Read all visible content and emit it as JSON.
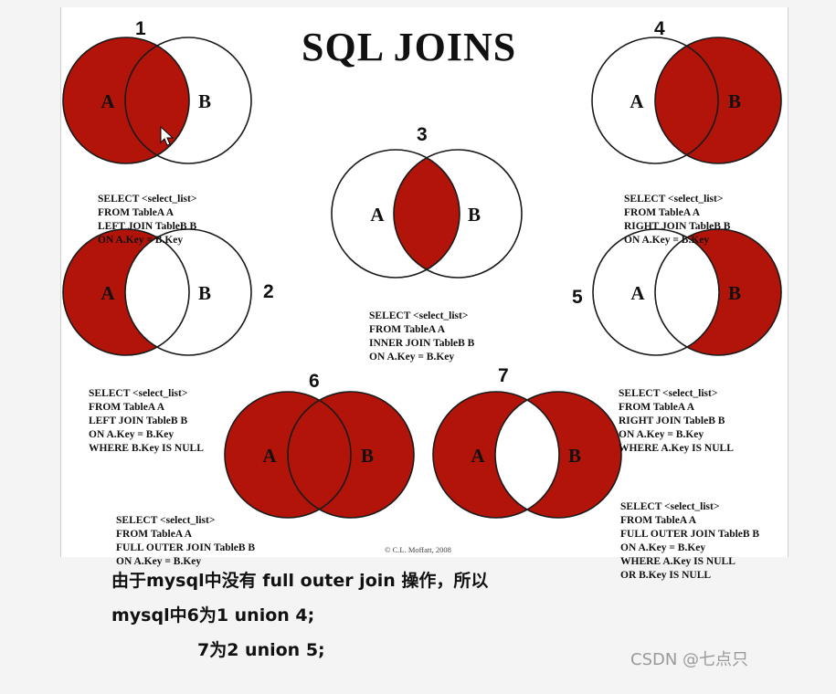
{
  "title": "SQL JOINS",
  "colors": {
    "fill": "#b3140a",
    "stroke": "#1a1a1a"
  },
  "joins": [
    {
      "number": "1",
      "label_a": "A",
      "label_b": "B",
      "sql": [
        "SELECT <select_list>",
        "FROM TableA A",
        "LEFT JOIN TableB B",
        "ON A.Key = B.Key"
      ]
    },
    {
      "number": "2",
      "label_a": "A",
      "label_b": "B",
      "sql": [
        "SELECT <select_list>",
        "FROM TableA A",
        "LEFT JOIN TableB B",
        "ON A.Key = B.Key",
        "WHERE B.Key IS NULL"
      ]
    },
    {
      "number": "3",
      "label_a": "A",
      "label_b": "B",
      "sql": [
        "SELECT <select_list>",
        "FROM TableA A",
        "INNER JOIN TableB B",
        "ON A.Key = B.Key"
      ]
    },
    {
      "number": "4",
      "label_a": "A",
      "label_b": "B",
      "sql": [
        "SELECT <select_list>",
        "FROM TableA A",
        "RIGHT JOIN TableB B",
        "ON A.Key = B.Key"
      ]
    },
    {
      "number": "5",
      "label_a": "A",
      "label_b": "B",
      "sql": [
        "SELECT <select_list>",
        "FROM TableA A",
        "RIGHT JOIN TableB B",
        "ON A.Key = B.Key",
        "WHERE A.Key IS NULL"
      ]
    },
    {
      "number": "6",
      "label_a": "A",
      "label_b": "B",
      "sql": [
        "SELECT <select_list>",
        "FROM TableA A",
        "FULL OUTER JOIN TableB B",
        "ON A.Key = B.Key"
      ]
    },
    {
      "number": "7",
      "label_a": "A",
      "label_b": "B",
      "sql": [
        "SELECT <select_list>",
        "FROM TableA A",
        "FULL OUTER JOIN TableB B",
        "ON A.Key = B.Key",
        "WHERE A.Key IS NULL",
        "OR B.Key IS NULL"
      ]
    }
  ],
  "copyright": "© C.L. Moffatt, 2008",
  "note": [
    "由于mysql中没有 full outer join 操作，所以",
    "mysql中6为1 union 4;",
    "7为2 union 5;"
  ],
  "watermark": "CSDN @七点只"
}
